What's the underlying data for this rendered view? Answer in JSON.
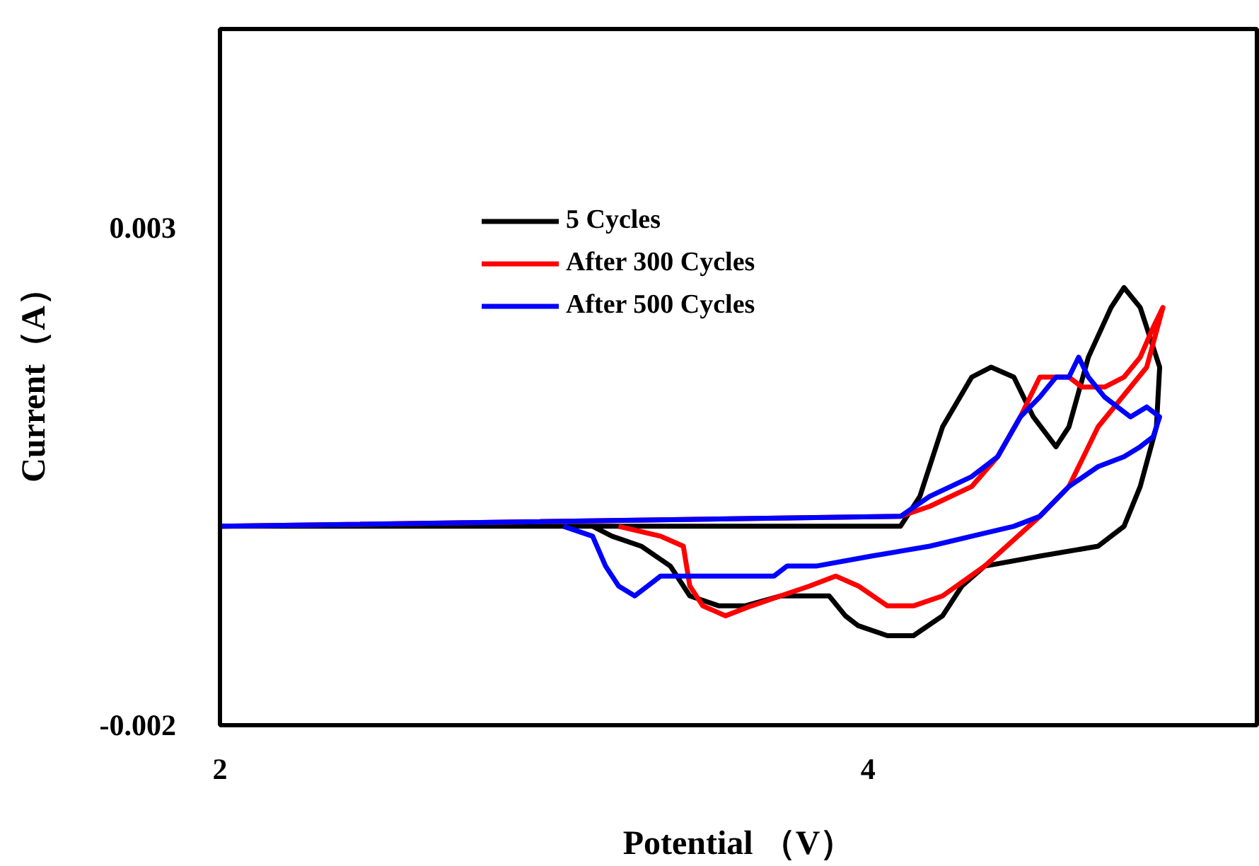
{
  "chart_data": {
    "type": "line",
    "xlabel": "Potential （V）",
    "ylabel": "Current（A）",
    "xlim": [
      2,
      5.2
    ],
    "ylim": [
      -0.002,
      0.005
    ],
    "xticks": [
      2,
      4
    ],
    "yticks": [
      -0.002,
      0.003
    ],
    "grid": false,
    "legend": "top",
    "line_style": "solid",
    "marker": "none",
    "series": [
      {
        "name": "5 Cycles",
        "color": "#000000",
        "x": [
          2.0,
          3.06,
          4.1,
          4.16,
          4.23,
          4.32,
          4.38,
          4.45,
          4.51,
          4.58,
          4.62,
          4.68,
          4.75,
          4.79,
          4.84,
          4.87,
          4.9,
          4.89,
          4.84,
          4.79,
          4.71,
          4.53,
          4.36,
          4.29,
          4.23,
          4.14,
          4.06,
          3.97,
          3.93,
          3.88,
          3.82,
          3.73,
          3.62,
          3.54,
          3.45,
          3.39,
          3.3,
          3.21,
          3.15
        ],
        "values": [
          0,
          0,
          0,
          0.0003,
          0.001,
          0.0015,
          0.0016,
          0.0015,
          0.0011,
          0.0008,
          0.001,
          0.0017,
          0.0022,
          0.0024,
          0.0022,
          0.0019,
          0.0016,
          0.001,
          0.0004,
          0,
          -0.0002,
          -0.0003,
          -0.0004,
          -0.0006,
          -0.0009,
          -0.0011,
          -0.0011,
          -0.001,
          -0.0009,
          -0.0007,
          -0.0007,
          -0.0007,
          -0.0008,
          -0.0008,
          -0.0007,
          -0.0004,
          -0.0002,
          -0.0001,
          0
        ]
      },
      {
        "name": "After 300 Cycles",
        "color": "#ff0000",
        "x": [
          2.0,
          4.1,
          4.19,
          4.32,
          4.4,
          4.47,
          4.53,
          4.58,
          4.62,
          4.66,
          4.73,
          4.79,
          4.84,
          4.88,
          4.91,
          4.86,
          4.71,
          4.62,
          4.53,
          4.36,
          4.23,
          4.14,
          4.06,
          3.97,
          3.9,
          3.82,
          3.73,
          3.64,
          3.56,
          3.49,
          3.45,
          3.43,
          3.36,
          3.23
        ],
        "values": [
          0,
          0.0001,
          0.0002,
          0.0004,
          0.0007,
          0.0011,
          0.0015,
          0.0015,
          0.0015,
          0.0014,
          0.0014,
          0.0015,
          0.0017,
          0.002,
          0.0022,
          0.0016,
          0.001,
          0.0004,
          0.0001,
          -0.0004,
          -0.0007,
          -0.0008,
          -0.0008,
          -0.0006,
          -0.0005,
          -0.0006,
          -0.0007,
          -0.0008,
          -0.0009,
          -0.0008,
          -0.0006,
          -0.0002,
          -0.0001,
          0
        ]
      },
      {
        "name": "After 500 Cycles",
        "color": "#0000ff",
        "x": [
          2.0,
          4.1,
          4.19,
          4.32,
          4.4,
          4.47,
          4.53,
          4.58,
          4.62,
          4.65,
          4.68,
          4.73,
          4.77,
          4.81,
          4.86,
          4.9,
          4.88,
          4.84,
          4.79,
          4.71,
          4.62,
          4.53,
          4.45,
          4.32,
          4.19,
          4.01,
          3.84,
          3.75,
          3.71,
          3.62,
          3.54,
          3.45,
          3.36,
          3.32,
          3.28,
          3.23,
          3.19,
          3.15,
          3.06
        ],
        "values": [
          0,
          0.0001,
          0.0003,
          0.0005,
          0.0007,
          0.0011,
          0.0013,
          0.0015,
          0.0015,
          0.0017,
          0.0015,
          0.0013,
          0.0012,
          0.0011,
          0.0012,
          0.0011,
          0.0009,
          0.0008,
          0.0007,
          0.0006,
          0.0004,
          0.0001,
          0,
          -0.0001,
          -0.0002,
          -0.0003,
          -0.0004,
          -0.0004,
          -0.0005,
          -0.0005,
          -0.0005,
          -0.0005,
          -0.0005,
          -0.0006,
          -0.0007,
          -0.0006,
          -0.0004,
          -0.0001,
          0
        ]
      }
    ]
  }
}
